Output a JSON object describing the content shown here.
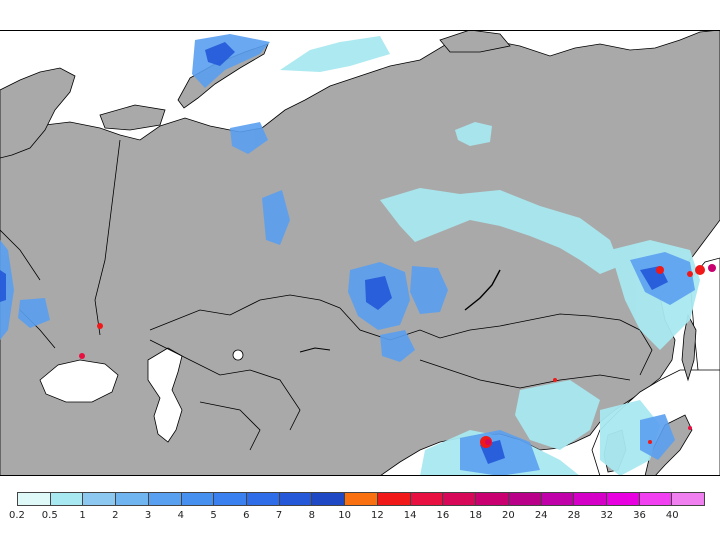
{
  "map": {
    "land_color": "#a9a9a9",
    "water_color": "#ffffff",
    "border_color": "#000000"
  },
  "legend": {
    "labels": [
      "0.2",
      "0.5",
      "1",
      "2",
      "3",
      "4",
      "5",
      "6",
      "7",
      "8",
      "10",
      "12",
      "14",
      "16",
      "18",
      "20",
      "24",
      "28",
      "32",
      "36",
      "40"
    ],
    "colors": [
      "#dff8f8",
      "#a8e8f0",
      "#8cc8f0",
      "#70b4f0",
      "#5aa0f0",
      "#4690f0",
      "#3a80ee",
      "#2e6ce8",
      "#2458d8",
      "#1e48c4",
      "#f87010",
      "#f01818",
      "#e81040",
      "#d80858",
      "#c80070",
      "#b80088",
      "#c000a8",
      "#d400c8",
      "#e800e0",
      "#f040f0",
      "#f080f0"
    ]
  }
}
